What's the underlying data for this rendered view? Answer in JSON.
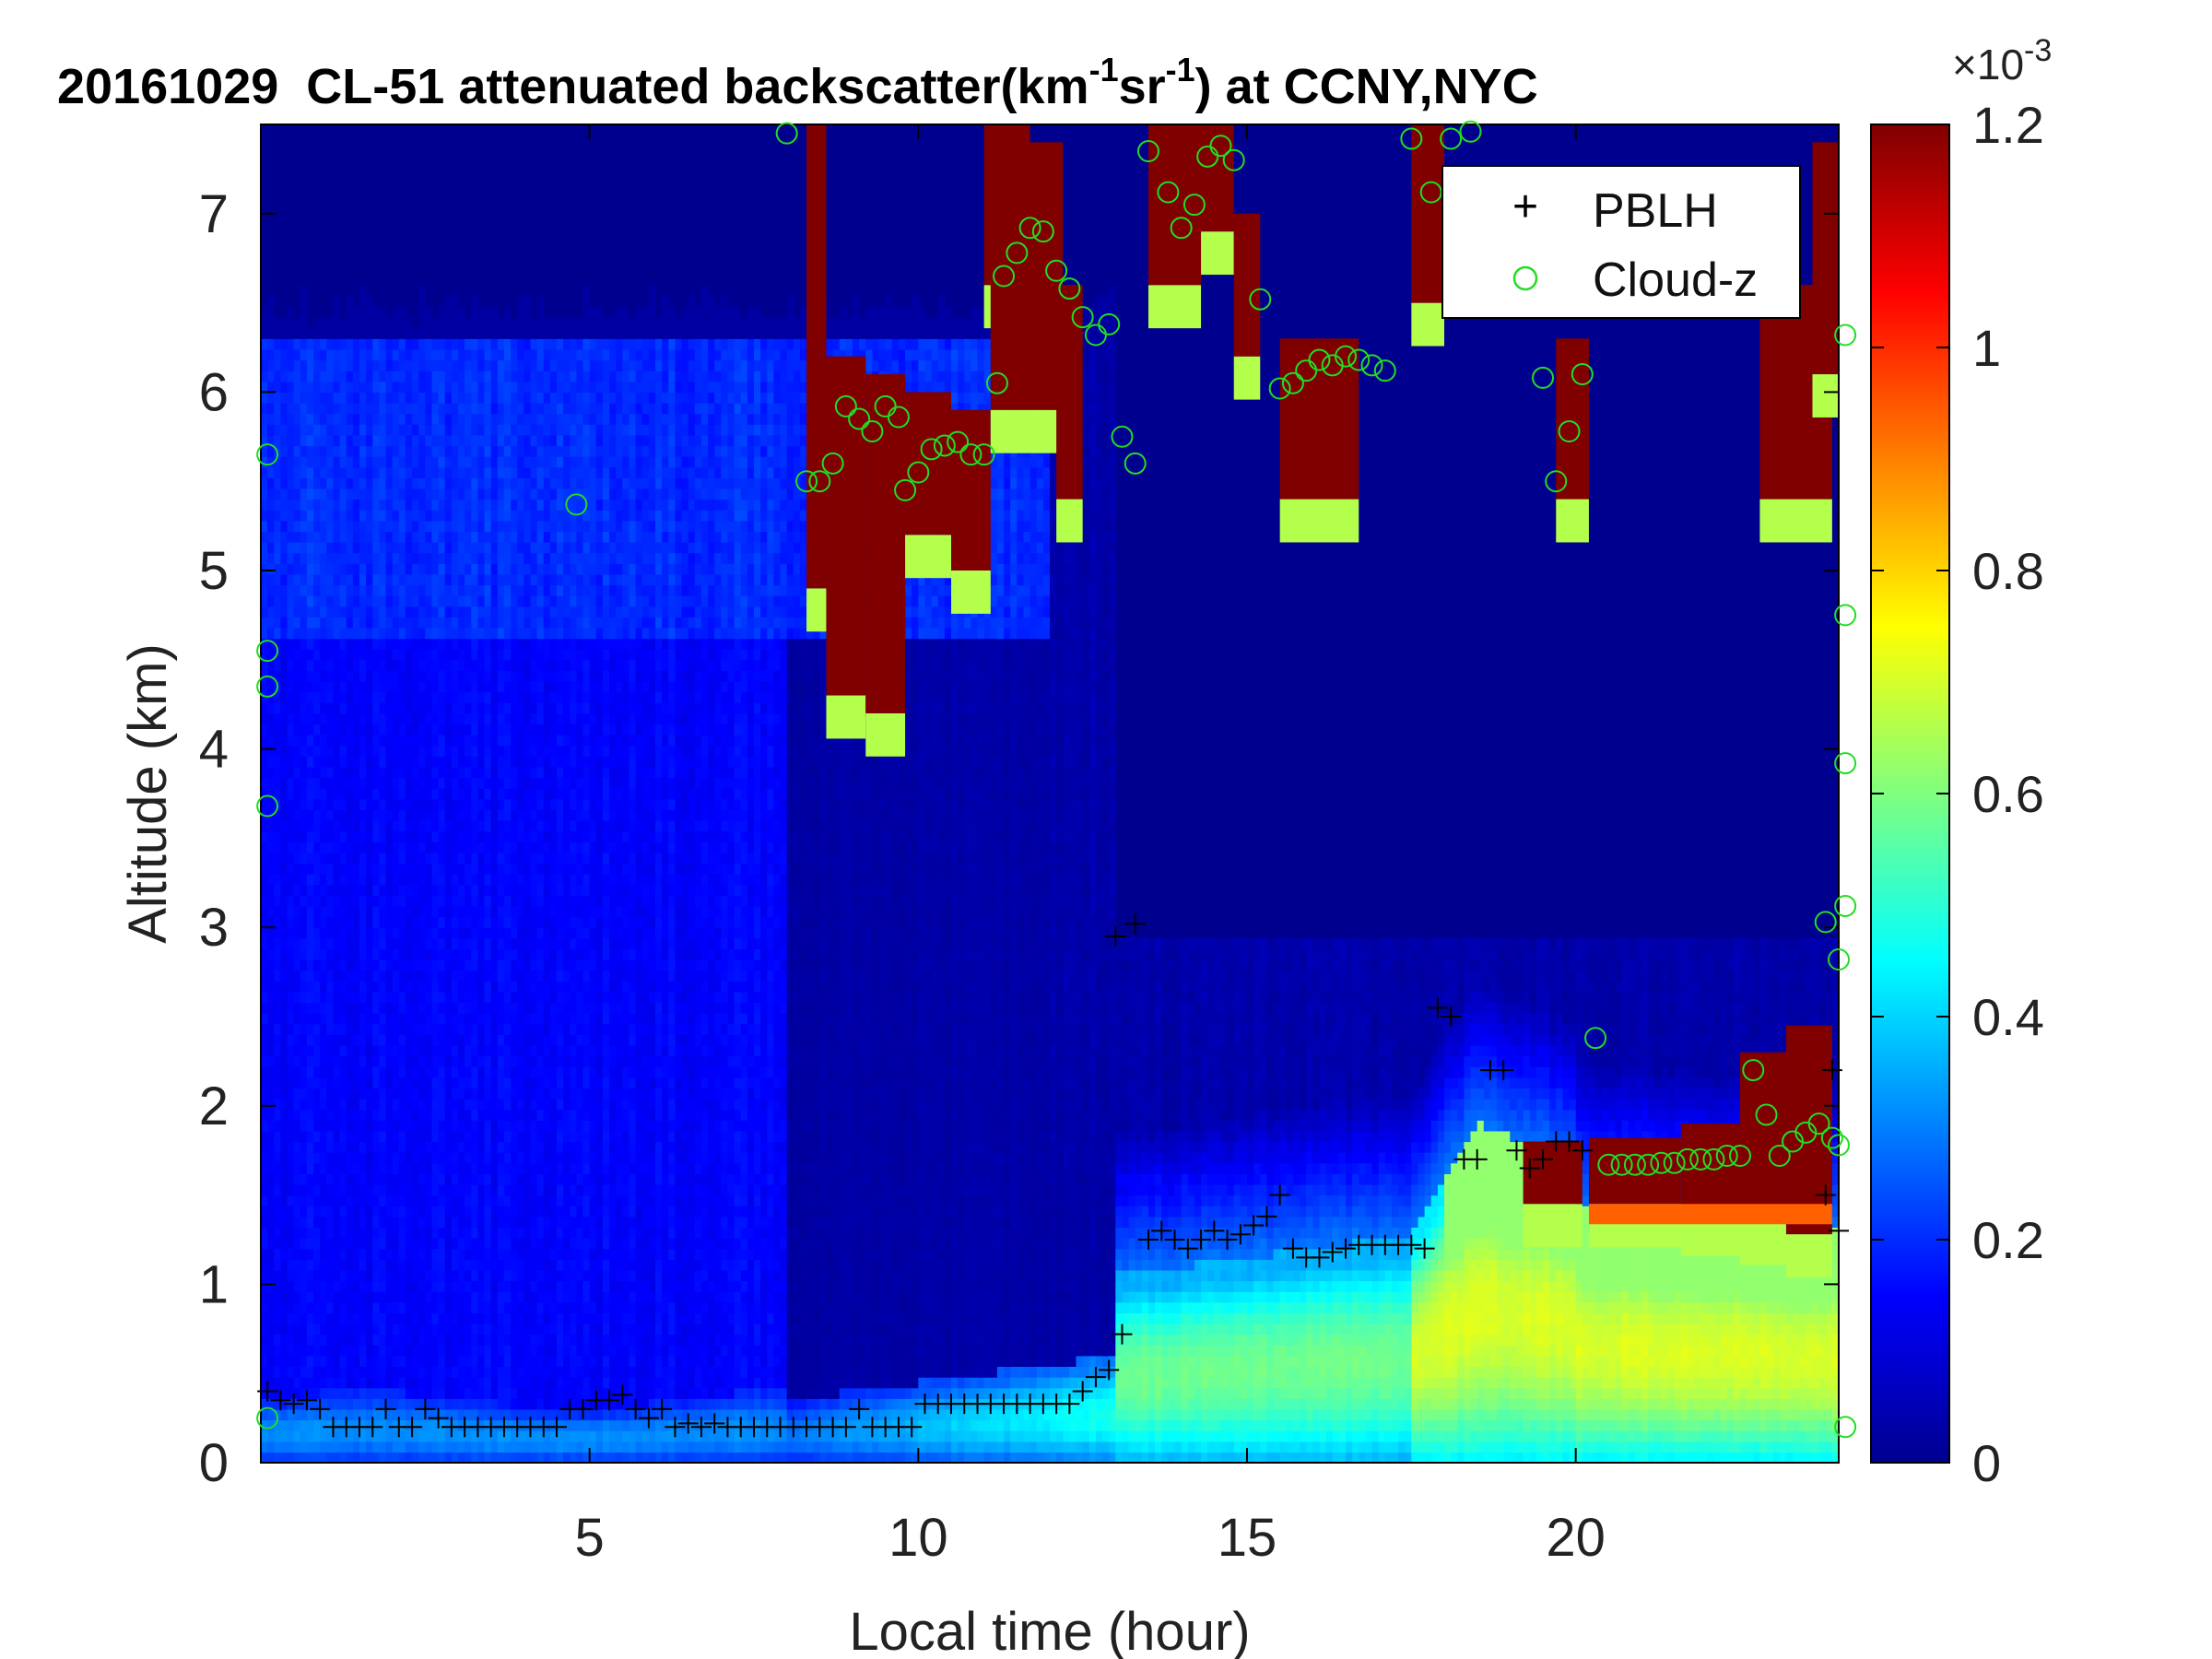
{
  "chart_data": {
    "type": "heatmap",
    "title_parts": {
      "date": "20161029",
      "prefix": "CL-51 attenuated backscatter(km",
      "exp1": "-1",
      "mid": "sr",
      "exp2": "-1",
      "suffix": ") at CCNY,NYC"
    },
    "xlabel": "Local time (hour)",
    "ylabel": "Altitude (km)",
    "xlim": [
      0,
      24
    ],
    "ylim": [
      0,
      7.5
    ],
    "xticks": [
      5,
      10,
      15,
      20
    ],
    "yticks": [
      0,
      1,
      2,
      3,
      4,
      5,
      6,
      7
    ],
    "colorbar": {
      "colormap": "jet",
      "range": [
        0,
        0.0012
      ],
      "ticks": [
        0,
        0.2,
        0.4,
        0.6,
        0.8,
        1,
        1.2
      ],
      "exponent_label": "×10",
      "exponent": "-3"
    },
    "legend": {
      "placement": "top-right",
      "entries": [
        {
          "label": "PBLH",
          "marker": "+",
          "color": "#000000"
        },
        {
          "label": "Cloud-z",
          "marker": "o",
          "color": "#22dd22"
        }
      ]
    },
    "series": [
      {
        "name": "PBLH",
        "marker": "+",
        "color": "#000000",
        "points": [
          [
            0.1,
            0.4
          ],
          [
            0.3,
            0.35
          ],
          [
            0.5,
            0.33
          ],
          [
            0.7,
            0.35
          ],
          [
            0.9,
            0.3
          ],
          [
            1.1,
            0.2
          ],
          [
            1.3,
            0.2
          ],
          [
            1.5,
            0.2
          ],
          [
            1.7,
            0.2
          ],
          [
            1.9,
            0.3
          ],
          [
            2.1,
            0.2
          ],
          [
            2.3,
            0.2
          ],
          [
            2.5,
            0.3
          ],
          [
            2.7,
            0.25
          ],
          [
            2.9,
            0.2
          ],
          [
            3.1,
            0.2
          ],
          [
            3.3,
            0.2
          ],
          [
            3.5,
            0.2
          ],
          [
            3.7,
            0.2
          ],
          [
            3.9,
            0.2
          ],
          [
            4.1,
            0.2
          ],
          [
            4.3,
            0.2
          ],
          [
            4.5,
            0.2
          ],
          [
            4.7,
            0.3
          ],
          [
            4.9,
            0.3
          ],
          [
            5.1,
            0.35
          ],
          [
            5.3,
            0.35
          ],
          [
            5.5,
            0.38
          ],
          [
            5.7,
            0.3
          ],
          [
            5.9,
            0.25
          ],
          [
            6.1,
            0.3
          ],
          [
            6.3,
            0.2
          ],
          [
            6.5,
            0.22
          ],
          [
            6.7,
            0.2
          ],
          [
            6.9,
            0.22
          ],
          [
            7.1,
            0.2
          ],
          [
            7.3,
            0.2
          ],
          [
            7.5,
            0.2
          ],
          [
            7.7,
            0.2
          ],
          [
            7.9,
            0.2
          ],
          [
            8.1,
            0.2
          ],
          [
            8.3,
            0.2
          ],
          [
            8.5,
            0.2
          ],
          [
            8.7,
            0.2
          ],
          [
            8.9,
            0.2
          ],
          [
            9.1,
            0.3
          ],
          [
            9.3,
            0.2
          ],
          [
            9.5,
            0.2
          ],
          [
            9.7,
            0.2
          ],
          [
            9.9,
            0.2
          ],
          [
            10.1,
            0.33
          ],
          [
            10.3,
            0.33
          ],
          [
            10.5,
            0.33
          ],
          [
            10.7,
            0.33
          ],
          [
            10.9,
            0.33
          ],
          [
            11.1,
            0.33
          ],
          [
            11.3,
            0.33
          ],
          [
            11.5,
            0.33
          ],
          [
            11.7,
            0.33
          ],
          [
            11.9,
            0.33
          ],
          [
            12.1,
            0.33
          ],
          [
            12.3,
            0.33
          ],
          [
            12.5,
            0.4
          ],
          [
            12.7,
            0.48
          ],
          [
            12.9,
            0.52
          ],
          [
            13.0,
            2.95
          ],
          [
            13.1,
            0.72
          ],
          [
            13.3,
            3.02
          ],
          [
            13.5,
            1.25
          ],
          [
            13.7,
            1.3
          ],
          [
            13.9,
            1.25
          ],
          [
            14.1,
            1.2
          ],
          [
            14.3,
            1.25
          ],
          [
            14.5,
            1.3
          ],
          [
            14.7,
            1.25
          ],
          [
            14.9,
            1.28
          ],
          [
            15.1,
            1.33
          ],
          [
            15.3,
            1.38
          ],
          [
            15.5,
            1.5
          ],
          [
            15.7,
            1.2
          ],
          [
            15.9,
            1.15
          ],
          [
            16.1,
            1.15
          ],
          [
            16.3,
            1.18
          ],
          [
            16.5,
            1.2
          ],
          [
            16.7,
            1.22
          ],
          [
            16.9,
            1.22
          ],
          [
            17.1,
            1.22
          ],
          [
            17.3,
            1.22
          ],
          [
            17.5,
            1.22
          ],
          [
            17.7,
            1.2
          ],
          [
            17.9,
            2.55
          ],
          [
            18.1,
            2.5
          ],
          [
            18.3,
            1.7
          ],
          [
            18.5,
            1.7
          ],
          [
            18.7,
            2.2
          ],
          [
            18.9,
            2.2
          ],
          [
            19.1,
            1.75
          ],
          [
            19.3,
            1.65
          ],
          [
            19.5,
            1.7
          ],
          [
            19.7,
            1.8
          ],
          [
            19.9,
            1.8
          ],
          [
            20.1,
            1.75
          ],
          [
            23.8,
            1.5
          ],
          [
            23.9,
            2.2
          ],
          [
            24.0,
            1.3
          ]
        ]
      },
      {
        "name": "Cloud-z",
        "marker": "o",
        "color": "#22dd22",
        "points": [
          [
            0.1,
            5.65
          ],
          [
            0.1,
            4.55
          ],
          [
            0.1,
            4.35
          ],
          [
            0.1,
            3.68
          ],
          [
            0.1,
            0.25
          ],
          [
            4.8,
            5.37
          ],
          [
            8.0,
            7.45
          ],
          [
            8.3,
            5.5
          ],
          [
            8.5,
            5.5
          ],
          [
            8.7,
            5.6
          ],
          [
            8.9,
            5.92
          ],
          [
            9.1,
            5.85
          ],
          [
            9.3,
            5.78
          ],
          [
            9.5,
            5.92
          ],
          [
            9.7,
            5.86
          ],
          [
            9.8,
            5.45
          ],
          [
            10.0,
            5.55
          ],
          [
            10.2,
            5.68
          ],
          [
            10.4,
            5.7
          ],
          [
            10.6,
            5.72
          ],
          [
            10.8,
            5.65
          ],
          [
            11.0,
            5.65
          ],
          [
            11.2,
            6.05
          ],
          [
            11.3,
            6.65
          ],
          [
            11.5,
            6.78
          ],
          [
            11.7,
            6.92
          ],
          [
            11.9,
            6.9
          ],
          [
            12.1,
            6.68
          ],
          [
            12.3,
            6.58
          ],
          [
            12.5,
            6.42
          ],
          [
            12.7,
            6.32
          ],
          [
            12.9,
            6.38
          ],
          [
            13.1,
            5.75
          ],
          [
            13.3,
            5.6
          ],
          [
            13.5,
            7.35
          ],
          [
            13.8,
            7.12
          ],
          [
            14.0,
            6.92
          ],
          [
            14.2,
            7.05
          ],
          [
            14.4,
            7.32
          ],
          [
            14.6,
            7.38
          ],
          [
            14.8,
            7.3
          ],
          [
            15.2,
            6.52
          ],
          [
            15.5,
            6.02
          ],
          [
            15.7,
            6.05
          ],
          [
            15.9,
            6.12
          ],
          [
            16.1,
            6.18
          ],
          [
            16.3,
            6.15
          ],
          [
            16.5,
            6.2
          ],
          [
            16.7,
            6.18
          ],
          [
            16.9,
            6.15
          ],
          [
            17.1,
            6.12
          ],
          [
            17.5,
            7.42
          ],
          [
            17.8,
            7.12
          ],
          [
            18.1,
            7.42
          ],
          [
            18.4,
            7.46
          ],
          [
            19.5,
            6.08
          ],
          [
            19.7,
            5.5
          ],
          [
            19.9,
            5.78
          ],
          [
            20.1,
            6.1
          ],
          [
            20.3,
            2.38
          ],
          [
            20.5,
            1.67
          ],
          [
            20.7,
            1.67
          ],
          [
            20.9,
            1.67
          ],
          [
            21.1,
            1.67
          ],
          [
            21.3,
            1.68
          ],
          [
            21.5,
            1.68
          ],
          [
            21.7,
            1.7
          ],
          [
            21.9,
            1.7
          ],
          [
            22.1,
            1.7
          ],
          [
            22.3,
            1.72
          ],
          [
            22.5,
            1.72
          ],
          [
            22.7,
            2.2
          ],
          [
            22.9,
            1.95
          ],
          [
            23.1,
            1.72
          ],
          [
            23.3,
            1.8
          ],
          [
            23.5,
            1.85
          ],
          [
            23.7,
            1.9
          ],
          [
            23.9,
            1.82
          ],
          [
            24.0,
            1.78
          ],
          [
            23.8,
            3.03
          ],
          [
            24.0,
            2.82
          ],
          [
            24.1,
            3.12
          ],
          [
            24.1,
            4.75
          ],
          [
            24.1,
            3.92
          ],
          [
            24.1,
            6.32
          ],
          [
            24.1,
            0.2
          ]
        ]
      }
    ],
    "regions": [
      {
        "label": "aerosol_layer_high",
        "t0": 0,
        "t1": 24,
        "z0": 0,
        "z1": 6.3,
        "level": 0.00015
      },
      {
        "label": "boundary_layer",
        "level": 0.0004
      },
      {
        "label": "cloud_base",
        "t0": 20.2,
        "t1": 23.9,
        "level": 0.0012
      }
    ]
  }
}
